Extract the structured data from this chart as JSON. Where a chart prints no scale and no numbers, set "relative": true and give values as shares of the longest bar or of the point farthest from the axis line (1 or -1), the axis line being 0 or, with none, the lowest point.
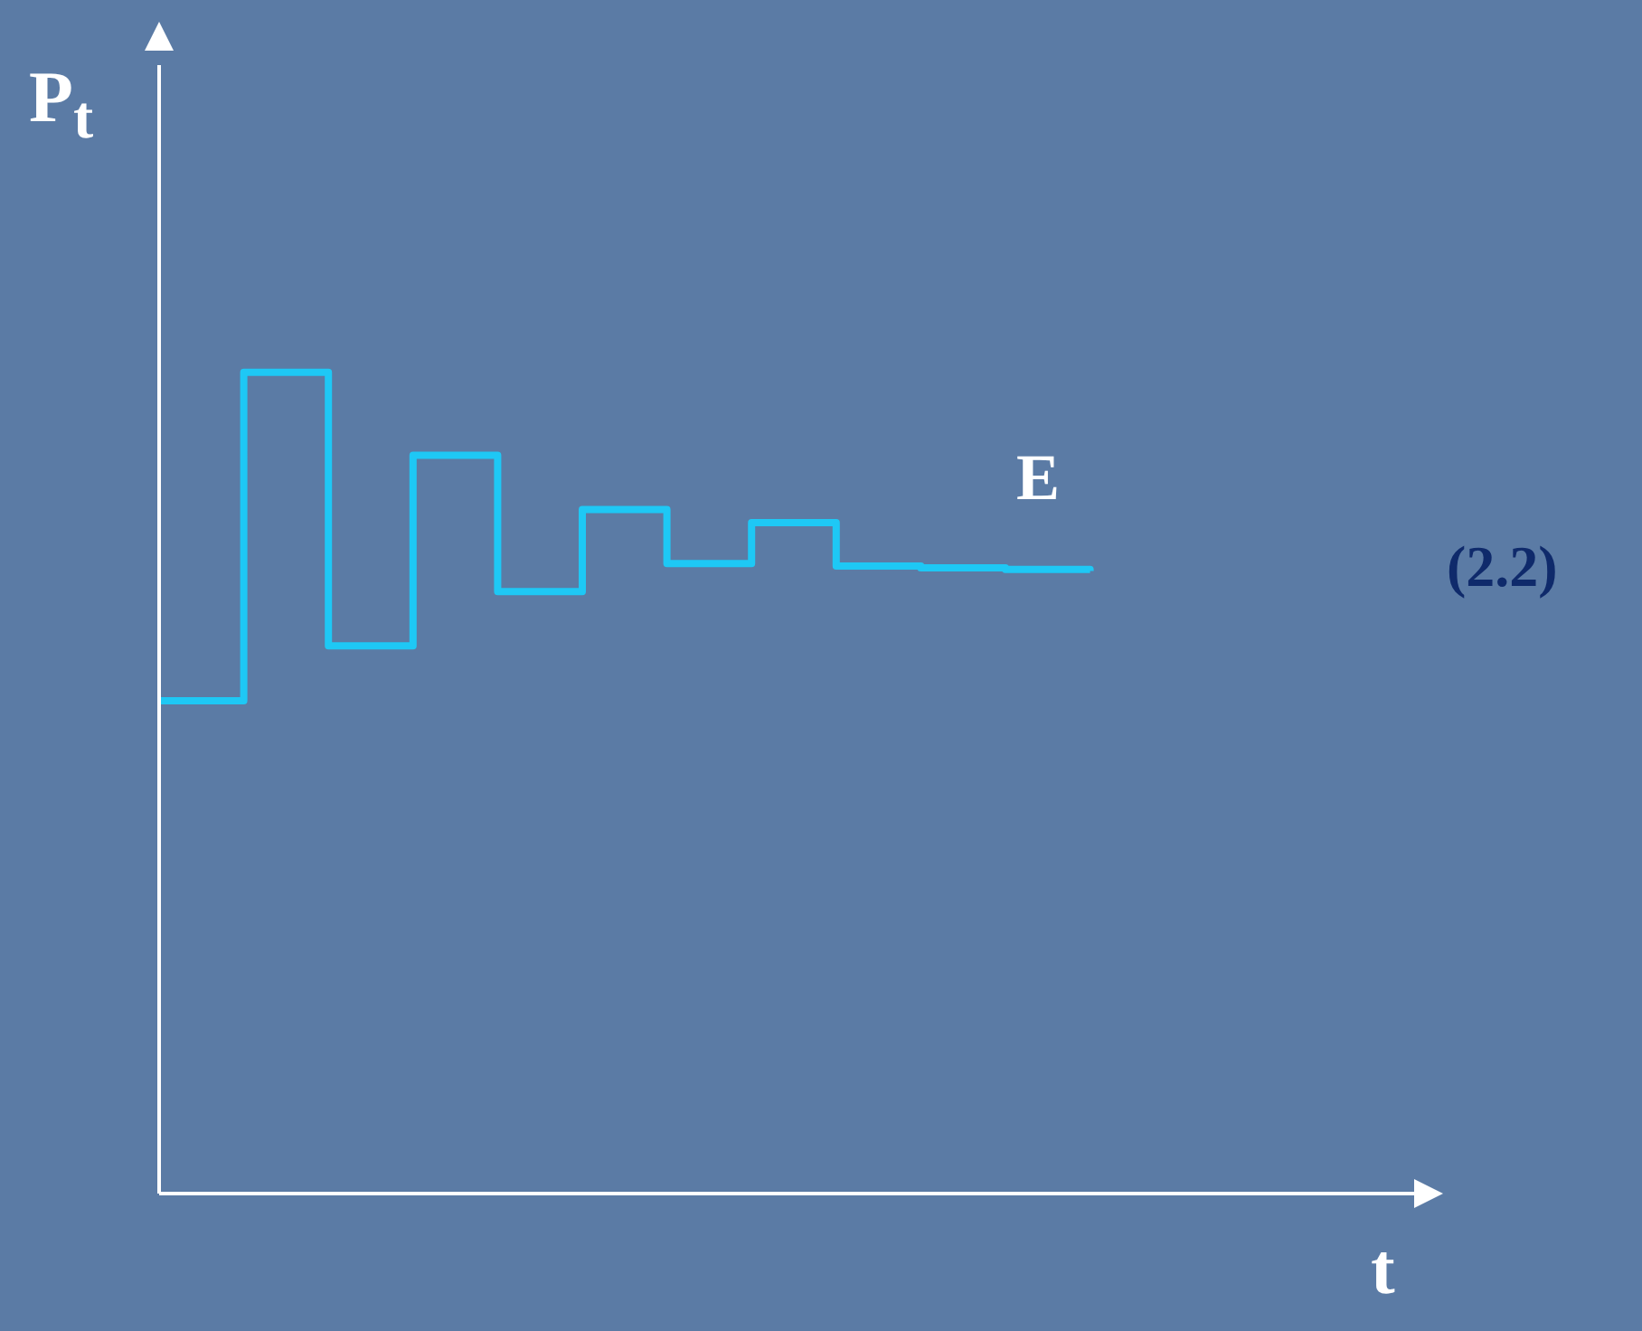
{
  "chart_data": {
    "type": "step",
    "relative": true,
    "xlabel": "t",
    "ylabel": "P$_{t}$",
    "annotations": [
      "E",
      "(2.2)"
    ],
    "categories": [
      null,
      null,
      null,
      null,
      null,
      null,
      null,
      null,
      null,
      null,
      null,
      null,
      null,
      null,
      null,
      null
    ],
    "series": [
      {
        "color": "#1ec8f5",
        "values": [
          0.6,
          1,
          0.667,
          0.899,
          0.733,
          0.833,
          0.767,
          0.817,
          0.764,
          0.762,
          0.76,
          0.758,
          null,
          null,
          null,
          null
        ]
      }
    ],
    "legend": false,
    "grid": false,
    "marker": "none",
    "line_style": "solid"
  }
}
